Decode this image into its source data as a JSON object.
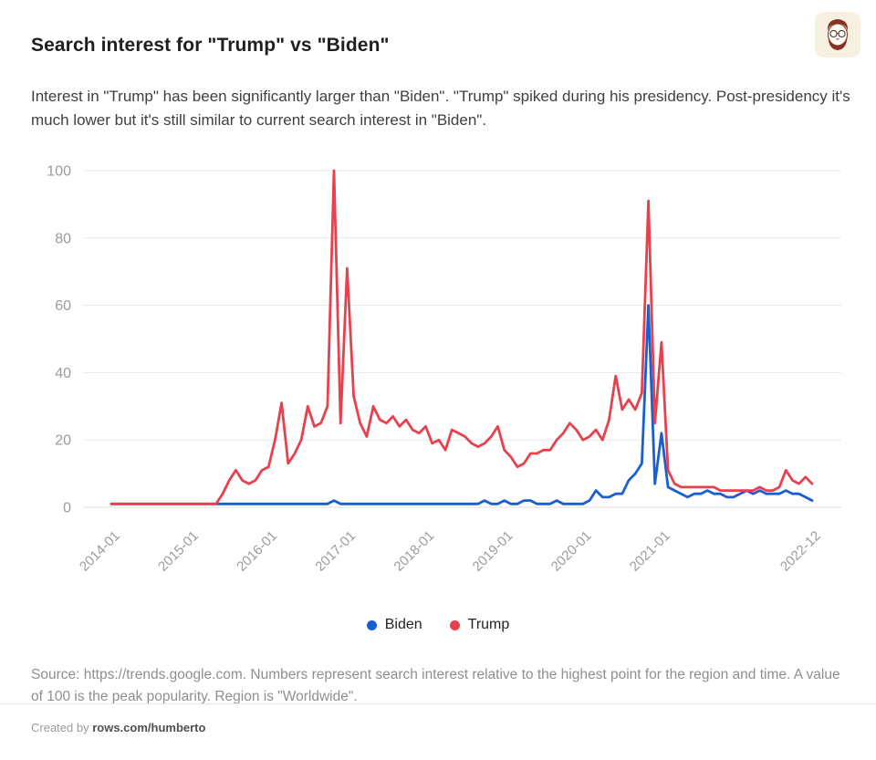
{
  "header": {
    "title": "Search interest for \"Trump\" vs \"Biden\"",
    "description": "Interest in \"Trump\" has been significantly larger than \"Biden\". \"Trump\" spiked during his presidency. Post-presidency it's much lower but it's still similar to current search interest in \"Biden\".",
    "avatar": "bearded-man-with-glasses-cartoon"
  },
  "chart_data": {
    "type": "line",
    "title": "Search interest for \"Trump\" vs \"Biden\"",
    "x_interval": "monthly",
    "x_range": [
      "2014-01",
      "2022-12"
    ],
    "x": [
      "2014-01",
      "2014-02",
      "2014-03",
      "2014-04",
      "2014-05",
      "2014-06",
      "2014-07",
      "2014-08",
      "2014-09",
      "2014-10",
      "2014-11",
      "2014-12",
      "2015-01",
      "2015-02",
      "2015-03",
      "2015-04",
      "2015-05",
      "2015-06",
      "2015-07",
      "2015-08",
      "2015-09",
      "2015-10",
      "2015-11",
      "2015-12",
      "2016-01",
      "2016-02",
      "2016-03",
      "2016-04",
      "2016-05",
      "2016-06",
      "2016-07",
      "2016-08",
      "2016-09",
      "2016-10",
      "2016-11",
      "2016-12",
      "2017-01",
      "2017-02",
      "2017-03",
      "2017-04",
      "2017-05",
      "2017-06",
      "2017-07",
      "2017-08",
      "2017-09",
      "2017-10",
      "2017-11",
      "2017-12",
      "2018-01",
      "2018-02",
      "2018-03",
      "2018-04",
      "2018-05",
      "2018-06",
      "2018-07",
      "2018-08",
      "2018-09",
      "2018-10",
      "2018-11",
      "2018-12",
      "2019-01",
      "2019-02",
      "2019-03",
      "2019-04",
      "2019-05",
      "2019-06",
      "2019-07",
      "2019-08",
      "2019-09",
      "2019-10",
      "2019-11",
      "2019-12",
      "2020-01",
      "2020-02",
      "2020-03",
      "2020-04",
      "2020-05",
      "2020-06",
      "2020-07",
      "2020-08",
      "2020-09",
      "2020-10",
      "2020-11",
      "2020-12",
      "2021-01",
      "2021-02",
      "2021-03",
      "2021-04",
      "2021-05",
      "2021-06",
      "2021-07",
      "2021-08",
      "2021-09",
      "2021-10",
      "2021-11",
      "2021-12",
      "2022-01",
      "2022-02",
      "2022-03",
      "2022-04",
      "2022-05",
      "2022-06",
      "2022-07",
      "2022-08",
      "2022-09",
      "2022-10",
      "2022-11",
      "2022-12"
    ],
    "x_tick_indices": [
      0,
      12,
      24,
      36,
      48,
      60,
      72,
      84,
      107
    ],
    "x_tick_labels": [
      "2014-01",
      "2015-01",
      "2016-01",
      "2017-01",
      "2018-01",
      "2019-01",
      "2020-01",
      "2021-01",
      "2022-12"
    ],
    "yticks": [
      0,
      20,
      40,
      60,
      80,
      100
    ],
    "ylim": [
      0,
      100
    ],
    "grid": true,
    "legend_position": "bottom",
    "series": [
      {
        "name": "Biden",
        "color": "#1a5fd0",
        "values": [
          1,
          1,
          1,
          1,
          1,
          1,
          1,
          1,
          1,
          1,
          1,
          1,
          1,
          1,
          1,
          1,
          1,
          1,
          1,
          1,
          1,
          1,
          1,
          1,
          1,
          1,
          1,
          1,
          1,
          1,
          1,
          1,
          1,
          1,
          2,
          1,
          1,
          1,
          1,
          1,
          1,
          1,
          1,
          1,
          1,
          1,
          1,
          1,
          1,
          1,
          1,
          1,
          1,
          1,
          1,
          1,
          1,
          2,
          1,
          1,
          2,
          1,
          1,
          2,
          2,
          1,
          1,
          1,
          2,
          1,
          1,
          1,
          1,
          2,
          5,
          3,
          3,
          4,
          4,
          8,
          10,
          13,
          60,
          7,
          22,
          6,
          5,
          4,
          3,
          4,
          4,
          5,
          4,
          4,
          3,
          3,
          4,
          5,
          4,
          5,
          4,
          4,
          4,
          5,
          4,
          4,
          3,
          2
        ]
      },
      {
        "name": "Trump",
        "color": "#e8414e",
        "values": [
          1,
          1,
          1,
          1,
          1,
          1,
          1,
          1,
          1,
          1,
          1,
          1,
          1,
          1,
          1,
          1,
          1,
          4,
          8,
          11,
          8,
          7,
          8,
          11,
          12,
          20,
          31,
          13,
          16,
          20,
          30,
          24,
          25,
          30,
          100,
          25,
          71,
          33,
          25,
          21,
          30,
          26,
          25,
          27,
          24,
          26,
          23,
          22,
          24,
          19,
          20,
          17,
          23,
          22,
          21,
          19,
          18,
          19,
          21,
          24,
          17,
          15,
          12,
          13,
          16,
          16,
          17,
          17,
          20,
          22,
          25,
          23,
          20,
          21,
          23,
          20,
          26,
          39,
          29,
          32,
          29,
          34,
          91,
          25,
          49,
          11,
          7,
          6,
          6,
          6,
          6,
          6,
          6,
          5,
          5,
          5,
          5,
          5,
          5,
          6,
          5,
          5,
          6,
          11,
          8,
          7,
          9,
          7
        ]
      }
    ],
    "axis_color": "#9b9b9b",
    "gridline_color": "#e9e9e9",
    "baseline_color": "#dcdcdc"
  },
  "source_note": "Source: https://trends.google.com. Numbers represent search interest relative to the highest point for the region and time. A value of 100 is the peak popularity. Region is \"Worldwide\".",
  "footer": {
    "created_by": "Created by ",
    "author": "rows.com/humberto"
  }
}
